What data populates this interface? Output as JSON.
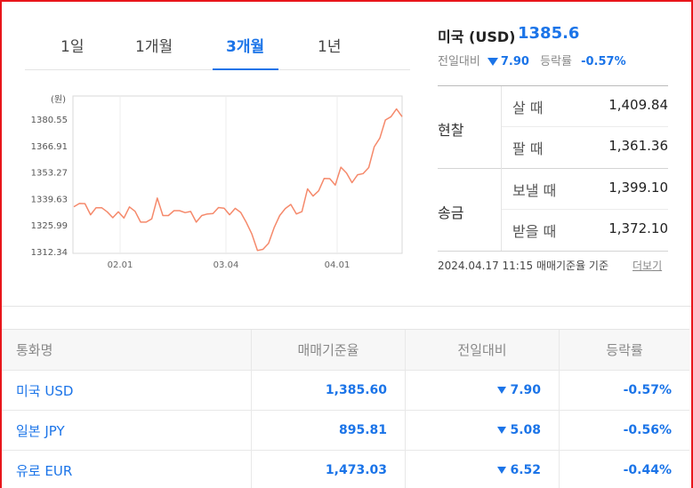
{
  "tabs": [
    {
      "label": "1일"
    },
    {
      "label": "1개월"
    },
    {
      "label": "3개월",
      "active": true
    },
    {
      "label": "1년"
    }
  ],
  "chart_data": {
    "type": "line",
    "unit_label": "(원)",
    "y_ticks": [
      "1380.55",
      "1366.91",
      "1353.27",
      "1339.63",
      "1325.99",
      "1312.34"
    ],
    "ylim": [
      1312.34,
      1380.55
    ],
    "x_ticks": [
      "02.01",
      "03.04",
      "04.01"
    ],
    "color": "#f5896b",
    "series": [
      {
        "values": [
          1335.4,
          1337.1,
          1337.0,
          1331.3,
          1334.9,
          1334.9,
          1332.8,
          1329.8,
          1332.8,
          1329.6,
          1335.3,
          1333.1,
          1327.5,
          1327.5,
          1329.2,
          1339.9,
          1330.9,
          1330.9,
          1333.4,
          1333.4,
          1332.4,
          1333.0,
          1327.5,
          1330.9,
          1331.7,
          1331.9,
          1335.0,
          1334.7,
          1331.3,
          1334.6,
          1332.5,
          1327.3,
          1321.4,
          1312.9,
          1313.5,
          1316.6,
          1324.7,
          1330.9,
          1334.5,
          1336.6,
          1331.7,
          1332.9,
          1344.6,
          1340.9,
          1343.6,
          1350.0,
          1349.9,
          1346.6,
          1355.8,
          1352.8,
          1347.8,
          1351.9,
          1352.5,
          1355.6,
          1366.3,
          1370.8,
          1380.1,
          1381.8,
          1385.8,
          1381.8
        ]
      }
    ]
  },
  "summary": {
    "title": "미국 (USD)",
    "price": "1385.6",
    "prev_label": "전일대비",
    "change": "7.90",
    "rate_label": "등락률",
    "rate": "-0.57%"
  },
  "cash": {
    "label": "현찰",
    "buy_label": "살 때",
    "buy": "1,409.84",
    "sell_label": "팔 때",
    "sell": "1,361.36"
  },
  "remit": {
    "label": "송금",
    "send_label": "보낼 때",
    "send": "1,399.10",
    "recv_label": "받을 때",
    "recv": "1,372.10"
  },
  "footnote": "2024.04.17 11:15  매매기준율 기준",
  "more_label": "더보기",
  "table": {
    "headers": [
      "통화명",
      "매매기준율",
      "전일대비",
      "등락률"
    ],
    "rows": [
      {
        "name": "미국 USD",
        "rate": "1,385.60",
        "change": "7.90",
        "pct": "-0.57%"
      },
      {
        "name": "일본 JPY",
        "rate": "895.81",
        "change": "5.08",
        "pct": "-0.56%"
      },
      {
        "name": "유로 EUR",
        "rate": "1,473.03",
        "change": "6.52",
        "pct": "-0.44%"
      }
    ]
  },
  "colors": {
    "accent": "#1b74e8",
    "line": "#f5896b",
    "frame": "#e8161b"
  }
}
